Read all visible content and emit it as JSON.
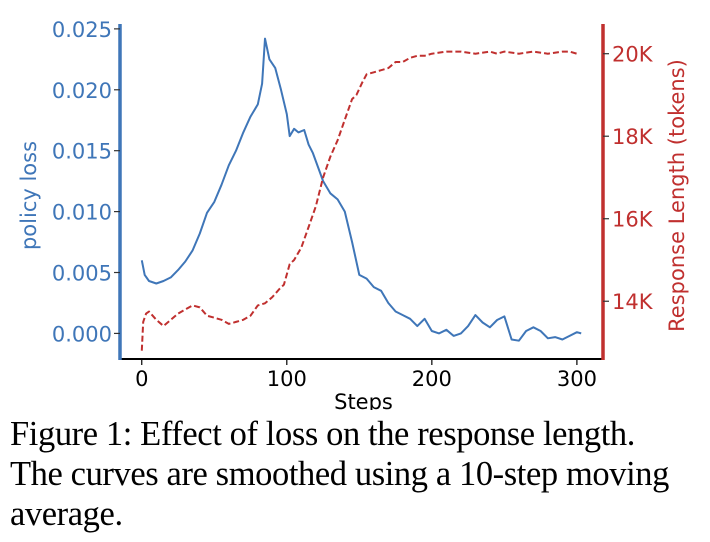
{
  "chart_data": {
    "type": "line",
    "title": "",
    "xlabel": "Steps",
    "ylabel_left": "policy loss",
    "ylabel_right": "Response Length (tokens)",
    "xlim": [
      -15,
      318
    ],
    "ylim_left": [
      -0.0021,
      0.0254
    ],
    "ylim_right": [
      12600,
      20720
    ],
    "x_ticks": [
      0,
      100,
      200,
      300
    ],
    "x_tick_labels": [
      "0",
      "100",
      "200",
      "300"
    ],
    "y_left_ticks": [
      0.0,
      0.005,
      0.01,
      0.015,
      0.02,
      0.025
    ],
    "y_left_tick_labels": [
      "0.000",
      "0.005",
      "0.010",
      "0.015",
      "0.020",
      "0.025"
    ],
    "y_right_ticks": [
      14000,
      16000,
      18000,
      20000
    ],
    "y_right_tick_labels": [
      "14K",
      "16K",
      "18K",
      "20K"
    ],
    "grid": false,
    "legend": "none",
    "colors": {
      "left": "#3f76b8",
      "right": "#c0302f",
      "axis": "#000000"
    },
    "series": [
      {
        "name": "policy loss",
        "axis": "left",
        "style": "solid",
        "x": [
          0,
          2,
          5,
          10,
          15,
          20,
          25,
          30,
          35,
          40,
          45,
          50,
          55,
          60,
          65,
          70,
          75,
          80,
          83,
          85,
          88,
          92,
          96,
          100,
          102,
          105,
          108,
          112,
          115,
          118,
          122,
          125,
          130,
          135,
          140,
          145,
          150,
          155,
          160,
          165,
          170,
          175,
          180,
          185,
          190,
          195,
          200,
          205,
          210,
          215,
          220,
          225,
          230,
          235,
          240,
          245,
          250,
          255,
          260,
          265,
          270,
          275,
          280,
          285,
          290,
          295,
          300,
          303
        ],
        "values": [
          0.006,
          0.0048,
          0.0043,
          0.0041,
          0.0043,
          0.0046,
          0.0052,
          0.0059,
          0.0068,
          0.0082,
          0.0099,
          0.0108,
          0.0122,
          0.0138,
          0.015,
          0.0165,
          0.0178,
          0.0188,
          0.0205,
          0.0242,
          0.0225,
          0.0218,
          0.02,
          0.018,
          0.0162,
          0.0168,
          0.0165,
          0.0167,
          0.0155,
          0.0148,
          0.0135,
          0.0125,
          0.0115,
          0.011,
          0.01,
          0.0075,
          0.0048,
          0.0045,
          0.0038,
          0.0035,
          0.0025,
          0.0018,
          0.0015,
          0.0012,
          0.0006,
          0.0012,
          0.0002,
          0.0,
          0.0003,
          -0.0002,
          0.0,
          0.0006,
          0.0015,
          0.0009,
          0.0005,
          0.0011,
          0.0014,
          -0.0005,
          -0.0006,
          0.0002,
          0.0005,
          0.0002,
          -0.0004,
          -0.0003,
          -0.0005,
          -0.0002,
          0.0001,
          0.0
        ]
      },
      {
        "name": "Response Length (tokens)",
        "axis": "right",
        "style": "dashed",
        "x": [
          0,
          1,
          3,
          5,
          10,
          15,
          20,
          25,
          30,
          35,
          40,
          45,
          50,
          55,
          60,
          65,
          70,
          75,
          80,
          85,
          90,
          95,
          98,
          102,
          105,
          110,
          115,
          120,
          125,
          130,
          135,
          140,
          145,
          148,
          152,
          155,
          160,
          165,
          170,
          175,
          180,
          185,
          190,
          195,
          200,
          210,
          220,
          230,
          240,
          245,
          250,
          260,
          270,
          280,
          290,
          295,
          300
        ],
        "values": [
          12800,
          13500,
          13700,
          13750,
          13550,
          13400,
          13550,
          13700,
          13800,
          13900,
          13850,
          13650,
          13600,
          13550,
          13450,
          13500,
          13550,
          13650,
          13900,
          13950,
          14100,
          14300,
          14400,
          14900,
          15000,
          15300,
          15800,
          16300,
          17000,
          17500,
          17900,
          18400,
          18900,
          19000,
          19300,
          19500,
          19550,
          19600,
          19650,
          19800,
          19800,
          19900,
          19950,
          19950,
          20000,
          20050,
          20050,
          20000,
          20050,
          20000,
          20050,
          20000,
          20050,
          20000,
          20050,
          20050,
          20000
        ]
      }
    ]
  },
  "caption": {
    "line1": "Figure 1: Effect of loss on the response length.",
    "line2": "The curves are smoothed using a 10-step moving",
    "line3": "average."
  }
}
